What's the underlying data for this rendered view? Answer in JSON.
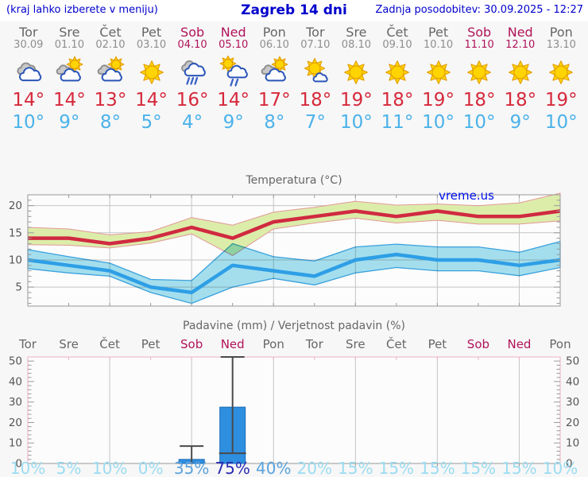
{
  "header": {
    "hint": "(kraj lahko izberete v meniju)",
    "title": "Zagreb 14 dni",
    "updated": "Zadnja posodobitev: 30.09.2025 - 12:27"
  },
  "watermark": "vreme.us",
  "days": [
    {
      "name": "Tor",
      "date": "30.09",
      "weekend": false,
      "icon": "cloudy",
      "high": "14°",
      "low": "10°"
    },
    {
      "name": "Sre",
      "date": "01.10",
      "weekend": false,
      "icon": "partly-cloudy",
      "high": "14°",
      "low": "9°"
    },
    {
      "name": "Čet",
      "date": "02.10",
      "weekend": false,
      "icon": "partly-cloudy",
      "high": "13°",
      "low": "8°"
    },
    {
      "name": "Pet",
      "date": "03.10",
      "weekend": false,
      "icon": "sunny",
      "high": "14°",
      "low": "5°"
    },
    {
      "name": "Sob",
      "date": "04.10",
      "weekend": true,
      "icon": "rain",
      "high": "16°",
      "low": "4°"
    },
    {
      "name": "Ned",
      "date": "05.10",
      "weekend": true,
      "icon": "sun-rain",
      "high": "14°",
      "low": "9°"
    },
    {
      "name": "Pon",
      "date": "06.10",
      "weekend": false,
      "icon": "partly-cloudy",
      "high": "17°",
      "low": "8°"
    },
    {
      "name": "Tor",
      "date": "07.10",
      "weekend": false,
      "icon": "mostly-sunny",
      "high": "18°",
      "low": "7°"
    },
    {
      "name": "Sre",
      "date": "08.10",
      "weekend": false,
      "icon": "sunny",
      "high": "19°",
      "low": "10°"
    },
    {
      "name": "Čet",
      "date": "09.10",
      "weekend": false,
      "icon": "sunny",
      "high": "18°",
      "low": "11°"
    },
    {
      "name": "Pet",
      "date": "10.10",
      "weekend": false,
      "icon": "sunny",
      "high": "19°",
      "low": "10°"
    },
    {
      "name": "Sob",
      "date": "11.10",
      "weekend": true,
      "icon": "sunny",
      "high": "18°",
      "low": "10°"
    },
    {
      "name": "Ned",
      "date": "12.10",
      "weekend": true,
      "icon": "sunny",
      "high": "18°",
      "low": "9°"
    },
    {
      "name": "Pon",
      "date": "13.10",
      "weekend": false,
      "icon": "sunny",
      "high": "19°",
      "low": "10°"
    }
  ],
  "chart_data": [
    {
      "type": "line",
      "title": "Temperatura (°C)",
      "ylim": [
        1.5,
        22
      ],
      "yticks": [
        5,
        10,
        15,
        20
      ],
      "grid_days": [
        2,
        4,
        6,
        8,
        10,
        12
      ],
      "series": [
        {
          "name": "max-temp",
          "line_color": "#d02a40",
          "band_fill": "#dcedaa",
          "band_edge": "#e39898",
          "values": [
            14,
            14,
            13,
            14,
            16,
            14,
            17,
            18,
            19,
            18,
            19,
            18,
            18,
            19
          ],
          "band_upper": [
            16,
            15.7,
            14.6,
            15.2,
            17.8,
            16.4,
            18.8,
            19.7,
            20.8,
            20.1,
            20.3,
            20,
            20.5,
            22.3
          ],
          "band_lower": [
            12.8,
            12.7,
            12.2,
            13.1,
            14.8,
            10.8,
            15.7,
            16.8,
            17.7,
            16.8,
            17.3,
            16.6,
            16.6,
            17.2
          ]
        },
        {
          "name": "min-temp",
          "line_color": "#2e9fe6",
          "band_fill": "#a6e1f0",
          "band_edge": "#3aa3e0",
          "values": [
            10,
            9,
            8,
            5,
            4,
            9,
            8,
            7,
            10,
            11,
            10,
            10,
            9,
            10
          ],
          "band_upper": [
            11.9,
            10.6,
            9.4,
            6.4,
            6.2,
            13,
            10.6,
            9.8,
            12.4,
            12.9,
            12.4,
            12.4,
            11.4,
            13.4
          ],
          "band_lower": [
            8.4,
            7.6,
            7,
            4,
            2,
            5,
            6.6,
            5.4,
            7.6,
            8.6,
            8,
            8,
            7.1,
            8.6
          ]
        }
      ]
    },
    {
      "type": "bar",
      "title": "Padavine (mm) / Verjetnost padavin (%)",
      "ylim": [
        0,
        52
      ],
      "yticks": [
        0,
        10,
        20,
        30,
        40,
        50
      ],
      "grid_days": [
        2,
        4,
        6,
        8,
        10,
        12
      ],
      "day_labels": [
        {
          "label": "Tor",
          "weekend": false
        },
        {
          "label": "Sre",
          "weekend": false
        },
        {
          "label": "Čet",
          "weekend": false
        },
        {
          "label": "Pet",
          "weekend": false
        },
        {
          "label": "Sob",
          "weekend": true
        },
        {
          "label": "Ned",
          "weekend": true
        },
        {
          "label": "Pon",
          "weekend": false
        },
        {
          "label": "Tor",
          "weekend": false
        },
        {
          "label": "Sre",
          "weekend": false
        },
        {
          "label": "Čet",
          "weekend": false
        },
        {
          "label": "Pet",
          "weekend": false
        },
        {
          "label": "Sob",
          "weekend": true
        },
        {
          "label": "Ned",
          "weekend": true
        },
        {
          "label": "Pon",
          "weekend": false
        }
      ],
      "bars": [
        {
          "day": 4,
          "mm": 2,
          "whisker_low": 0,
          "whisker_high": 8.5,
          "cap_low": false,
          "cap_high": true
        },
        {
          "day": 5,
          "mm": 27.5,
          "whisker_low": 5,
          "whisker_high": 52,
          "cap_low": true,
          "cap_high": true
        }
      ],
      "probabilities": [
        {
          "value": "10%",
          "level": "low"
        },
        {
          "value": "5%",
          "level": "low"
        },
        {
          "value": "10%",
          "level": "low"
        },
        {
          "value": "0%",
          "level": "low"
        },
        {
          "value": "35%",
          "level": "mid"
        },
        {
          "value": "75%",
          "level": "high"
        },
        {
          "value": "40%",
          "level": "mid"
        },
        {
          "value": "20%",
          "level": "low"
        },
        {
          "value": "15%",
          "level": "low"
        },
        {
          "value": "15%",
          "level": "low"
        },
        {
          "value": "15%",
          "level": "low"
        },
        {
          "value": "15%",
          "level": "low"
        },
        {
          "value": "15%",
          "level": "low"
        },
        {
          "value": "10%",
          "level": "low"
        }
      ]
    }
  ],
  "colors": {
    "page_bg": "#f7f7f7",
    "plot_bg": "#fcfcfc",
    "link_blue": "#0000cc",
    "weekend": "#b0135a",
    "day_gray": "#666666",
    "date_gray": "#8e8e8e",
    "high_red": "#d6293c",
    "low_blue": "#4bb2ea",
    "grid": "#c4c4c4",
    "frame": "#999999",
    "frame_pink": "#f0b0c2",
    "axis_text": "#555555",
    "bar_fill": "#2e8ee0",
    "bar_edge": "#1a6ab5",
    "whisker": "#4a4a4a",
    "prob_low": "#9bdcf2",
    "prob_mid": "#5ba2dc",
    "prob_high": "#2b2bb4",
    "watermark_blue": "#0011ee"
  }
}
